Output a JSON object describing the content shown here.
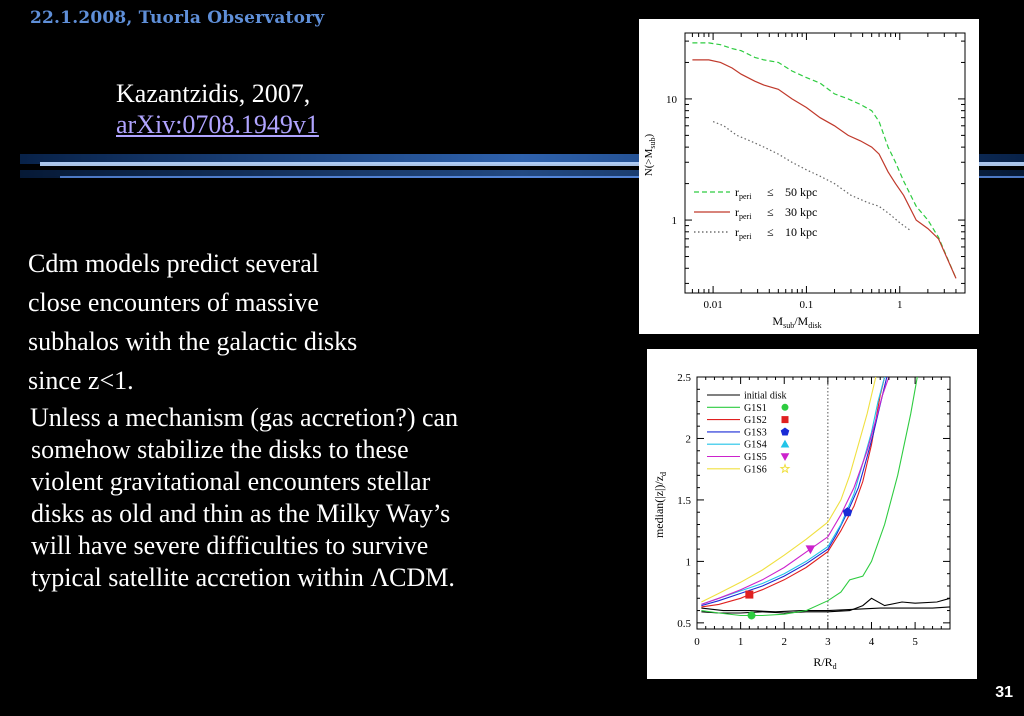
{
  "header": {
    "date_place": "22.1.2008, Tuorla Observatory"
  },
  "reference": {
    "author_year": "Kazantzidis, 2007,",
    "arxiv": "arXiv:0708.1949v1"
  },
  "body": {
    "bullet_lines": [
      "Cdm models predict several",
      "close encounters of massive",
      "subhalos with the galactic disks",
      "since  z<1."
    ],
    "para_lines": [
      "Unless a mechanism (gas accretion?) can",
      "somehow stabilize the disks to these",
      "violent gravitational encounters stellar",
      "disks as old and thin as the Milky Way’s",
      "will have severe difficulties to survive",
      "typical satellite accretion within ΛCDM."
    ]
  },
  "page_number": "31",
  "figure1": {
    "type": "line",
    "xlabel": "M",
    "xlabel_sub": "sub",
    "xlabel_mid": "/M",
    "xlabel_sub2": "disk",
    "ylabel": "N(>M",
    "ylabel_sub": "sub",
    "ylabel_end": ")",
    "x_scale": "log",
    "y_scale": "log",
    "xlim": [
      0.005,
      5
    ],
    "ylim": [
      0.25,
      35
    ],
    "x_ticks": [
      {
        "v": 0.01,
        "label": "0.01"
      },
      {
        "v": 0.1,
        "label": "0.1"
      },
      {
        "v": 1,
        "label": "1"
      }
    ],
    "y_ticks": [
      {
        "v": 1,
        "label": "1"
      },
      {
        "v": 10,
        "label": "10"
      }
    ],
    "legend": [
      {
        "pre": "r",
        "sub": "peri",
        "rel": "≤",
        "val": "50  kpc",
        "style": "dashed",
        "color": "#2ecc40"
      },
      {
        "pre": "r",
        "sub": "peri",
        "rel": "≤",
        "val": "30  kpc",
        "style": "solid",
        "color": "#c0392b"
      },
      {
        "pre": "r",
        "sub": "peri",
        "rel": "≤",
        "val": "10  kpc",
        "style": "dotted",
        "color": "#555555"
      }
    ],
    "series": [
      {
        "name": "r_peri ≤ 50 kpc",
        "color": "#2ecc40",
        "dash": "5,3",
        "x": [
          0.006,
          0.009,
          0.012,
          0.016,
          0.02,
          0.028,
          0.035,
          0.05,
          0.07,
          0.1,
          0.14,
          0.2,
          0.28,
          0.38,
          0.5,
          0.6,
          0.75,
          0.9,
          1.1,
          1.5,
          2,
          2.6,
          4
        ],
        "y": [
          29,
          29,
          28,
          26,
          25,
          22,
          21,
          20,
          17,
          15,
          13.5,
          11,
          10,
          9,
          8,
          6.5,
          4,
          3,
          2.1,
          1.3,
          1.0,
          0.72,
          0.33
        ]
      },
      {
        "name": "r_peri ≤ 30 kpc",
        "color": "#c0392b",
        "dash": "",
        "x": [
          0.006,
          0.009,
          0.012,
          0.016,
          0.02,
          0.028,
          0.035,
          0.05,
          0.07,
          0.1,
          0.14,
          0.2,
          0.28,
          0.38,
          0.5,
          0.6,
          0.75,
          0.9,
          1.1,
          1.5,
          2,
          2.6,
          4
        ],
        "y": [
          21,
          21,
          20,
          18,
          16,
          14,
          13,
          12,
          10,
          8.5,
          7,
          6,
          5,
          4.5,
          4,
          3.5,
          2.5,
          2.0,
          1.6,
          1.0,
          0.85,
          0.7,
          0.33
        ]
      },
      {
        "name": "r_peri ≤ 10 kpc",
        "color": "#666666",
        "dash": "1.5,2.5",
        "x": [
          0.01,
          0.013,
          0.018,
          0.025,
          0.035,
          0.05,
          0.07,
          0.1,
          0.14,
          0.2,
          0.3,
          0.45,
          0.6,
          0.8,
          1,
          1.3
        ],
        "y": [
          6.5,
          6,
          5,
          4.5,
          4,
          3.5,
          3,
          2.6,
          2.3,
          2.0,
          1.6,
          1.4,
          1.3,
          1.1,
          0.95,
          0.82
        ]
      }
    ]
  },
  "figure2": {
    "type": "line",
    "xlabel": "R/R",
    "xlabel_sub": "d",
    "ylabel": "median(|z|)/z",
    "ylabel_sub": "d",
    "xlim": [
      0,
      5.8
    ],
    "ylim": [
      0.45,
      2.5
    ],
    "x_ticks": [
      0,
      1,
      2,
      3,
      4,
      5
    ],
    "y_ticks": [
      0.5,
      1,
      1.5,
      2,
      2.5
    ],
    "y_tick_labels": [
      "0.5",
      "1",
      "1.5",
      "2",
      "2.5"
    ],
    "vline": 3,
    "legend": [
      {
        "name": "initial disk",
        "color": "#000000",
        "marker": "none"
      },
      {
        "name": "G1S1",
        "color": "#2ecc40",
        "marker": "circle"
      },
      {
        "name": "G1S2",
        "color": "#e02020",
        "marker": "square"
      },
      {
        "name": "G1S3",
        "color": "#1a2bd6",
        "marker": "pentagon"
      },
      {
        "name": "G1S4",
        "color": "#22c4e8",
        "marker": "triangle-up"
      },
      {
        "name": "G1S5",
        "color": "#cc22cc",
        "marker": "triangle-down"
      },
      {
        "name": "G1S6",
        "color": "#f0e040",
        "marker": "star"
      }
    ],
    "series": [
      {
        "name": "initial disk",
        "color": "#000000",
        "x": [
          0.1,
          0.5,
          1,
          1.5,
          2,
          2.5,
          3,
          3.5,
          3.8,
          4,
          4.3,
          4.7,
          5,
          5.5,
          5.8
        ],
        "y": [
          0.59,
          0.58,
          0.58,
          0.59,
          0.58,
          0.59,
          0.59,
          0.6,
          0.64,
          0.7,
          0.64,
          0.67,
          0.66,
          0.67,
          0.7
        ]
      },
      {
        "name": "initial disk b",
        "color": "#000000",
        "x": [
          0.1,
          0.6,
          1.2,
          1.8,
          2.4,
          3,
          3.6,
          4.2,
          4.8,
          5.4,
          5.8
        ],
        "y": [
          0.62,
          0.6,
          0.6,
          0.59,
          0.6,
          0.6,
          0.61,
          0.62,
          0.62,
          0.62,
          0.63
        ]
      },
      {
        "name": "G1S1",
        "color": "#2ecc40",
        "x": [
          0.1,
          0.5,
          1,
          1.25,
          1.5,
          2,
          2.5,
          3,
          3.3,
          3.5,
          3.8,
          4,
          4.3,
          4.6,
          4.9,
          5.05
        ],
        "y": [
          0.6,
          0.58,
          0.56,
          0.56,
          0.56,
          0.57,
          0.6,
          0.68,
          0.75,
          0.85,
          0.88,
          1.0,
          1.3,
          1.7,
          2.2,
          2.5
        ]
      },
      {
        "name": "G1S2",
        "color": "#e02020",
        "x": [
          0.1,
          0.5,
          1,
          1.2,
          1.5,
          2,
          2.5,
          3,
          3.3,
          3.6,
          3.8,
          4,
          4.1,
          4.2,
          4.3
        ],
        "y": [
          0.63,
          0.65,
          0.7,
          0.73,
          0.77,
          0.85,
          0.95,
          1.08,
          1.25,
          1.45,
          1.65,
          1.95,
          2.15,
          2.35,
          2.5
        ]
      },
      {
        "name": "G1S3",
        "color": "#1a2bd6",
        "x": [
          0.1,
          0.5,
          1,
          1.5,
          2,
          2.5,
          3,
          3.2,
          3.45,
          3.7,
          3.9,
          4.05,
          4.15,
          4.25,
          4.35
        ],
        "y": [
          0.64,
          0.68,
          0.74,
          0.8,
          0.88,
          0.98,
          1.1,
          1.22,
          1.4,
          1.6,
          1.85,
          2.05,
          2.2,
          2.35,
          2.5
        ]
      },
      {
        "name": "G1S4",
        "color": "#22c4e8",
        "x": [
          0.1,
          0.5,
          1,
          1.5,
          2,
          2.5,
          3,
          3.3,
          3.6,
          3.8,
          4,
          4.15,
          4.3
        ],
        "y": [
          0.65,
          0.7,
          0.76,
          0.82,
          0.9,
          1.0,
          1.12,
          1.3,
          1.55,
          1.8,
          2.05,
          2.3,
          2.5
        ]
      },
      {
        "name": "G1S5",
        "color": "#cc22cc",
        "x": [
          0.1,
          0.5,
          1,
          1.5,
          2,
          2.6,
          3,
          3.3,
          3.6,
          3.9,
          4.1,
          4.25,
          4.4
        ],
        "y": [
          0.65,
          0.7,
          0.77,
          0.85,
          0.95,
          1.1,
          1.2,
          1.38,
          1.6,
          1.9,
          2.15,
          2.35,
          2.5
        ]
      },
      {
        "name": "G1S6",
        "color": "#f0e040",
        "x": [
          0.1,
          0.5,
          1,
          1.5,
          2,
          2.5,
          3,
          3.3,
          3.5,
          3.7,
          3.9,
          4.1
        ],
        "y": [
          0.67,
          0.74,
          0.83,
          0.93,
          1.05,
          1.18,
          1.32,
          1.5,
          1.7,
          1.95,
          2.2,
          2.5
        ]
      }
    ],
    "markers": [
      {
        "series": "G1S1",
        "x": 1.25,
        "y": 0.56,
        "shape": "circle",
        "color": "#2ecc40"
      },
      {
        "series": "G1S2",
        "x": 1.2,
        "y": 0.73,
        "shape": "square",
        "color": "#e02020"
      },
      {
        "series": "G1S3",
        "x": 3.45,
        "y": 1.4,
        "shape": "pentagon",
        "color": "#1a2bd6"
      },
      {
        "series": "G1S5",
        "x": 2.6,
        "y": 1.1,
        "shape": "triangle-down",
        "color": "#cc22cc"
      }
    ]
  }
}
